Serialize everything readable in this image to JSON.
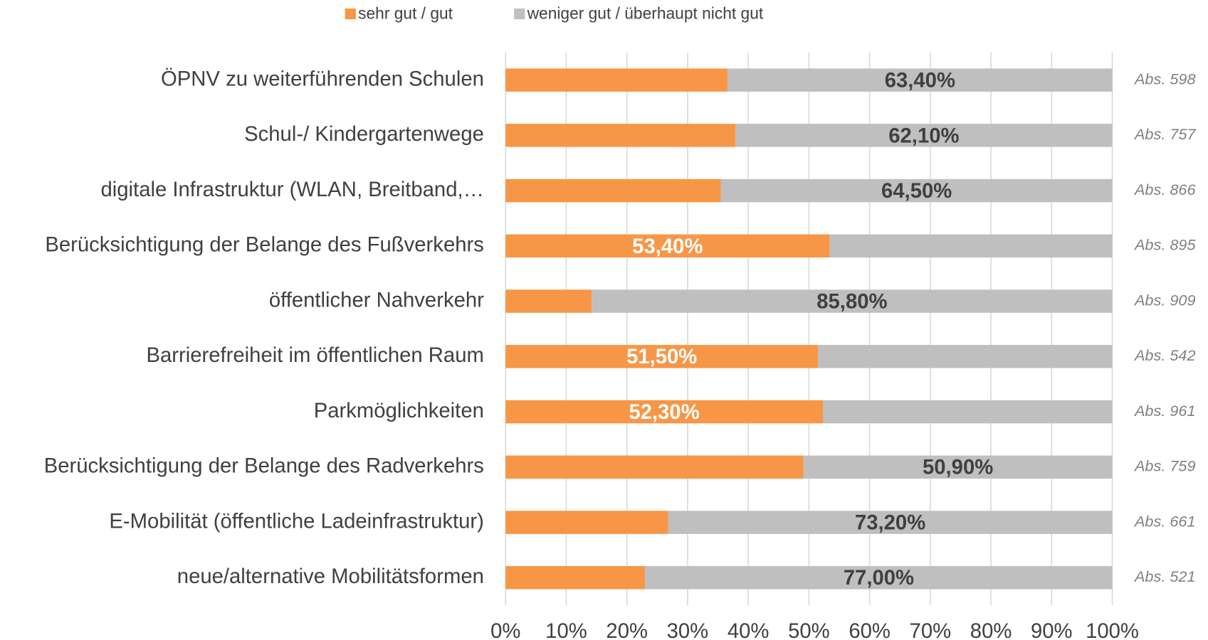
{
  "chart_data": {
    "type": "stacked-bar-horizontal",
    "categories": [
      "ÖPNV zu weiterführenden Schulen",
      "Schul-/ Kindergartenwege",
      "digitale Infrastruktur (WLAN, Breitband,…",
      "Berücksichtigung der Belange des Fußverkehrs",
      "öffentlicher Nahverkehr",
      "Barrierefreiheit im öffentlichen Raum",
      "Parkmöglichkeiten",
      "Berücksichtigung der Belange des Radverkehrs",
      "E-Mobilität (öffentliche Ladeinfrastruktur)",
      "neue/alternative Mobilitätsformen"
    ],
    "series": [
      {
        "name": "sehr gut / gut",
        "color": "#F79646",
        "values": [
          36.6,
          37.9,
          35.5,
          53.4,
          14.2,
          51.5,
          52.3,
          49.1,
          26.8,
          23.0
        ],
        "value_labels": [
          null,
          null,
          null,
          "53,40%",
          null,
          "51,50%",
          "52,30%",
          null,
          null,
          null
        ]
      },
      {
        "name": "weniger gut / überhaupt nicht gut",
        "color": "#BFBFBF",
        "values": [
          63.4,
          62.1,
          64.5,
          46.6,
          85.8,
          48.5,
          47.7,
          50.9,
          73.2,
          77.0
        ],
        "value_labels": [
          "63,40%",
          "62,10%",
          "64,50%",
          null,
          "85,80%",
          null,
          null,
          "50,90%",
          "73,20%",
          "77,00%"
        ]
      }
    ],
    "annotations": [
      "Abs. 598",
      "Abs. 757",
      "Abs. 866",
      "Abs. 895",
      "Abs. 909",
      "Abs. 542",
      "Abs. 961",
      "Abs. 759",
      "Abs. 661",
      "Abs. 521"
    ],
    "xlim": [
      0,
      100
    ],
    "xticks": [
      {
        "value": 0,
        "label": "0%"
      },
      {
        "value": 10,
        "label": "10%"
      },
      {
        "value": 20,
        "label": "20%"
      },
      {
        "value": 30,
        "label": "30%"
      },
      {
        "value": 40,
        "label": "40%"
      },
      {
        "value": 50,
        "label": "50%"
      },
      {
        "value": 60,
        "label": "60%"
      },
      {
        "value": 70,
        "label": "70%"
      },
      {
        "value": 80,
        "label": "80%"
      },
      {
        "value": 90,
        "label": "90%"
      },
      {
        "value": 100,
        "label": "100%"
      }
    ],
    "grid": true,
    "legend": "top"
  }
}
